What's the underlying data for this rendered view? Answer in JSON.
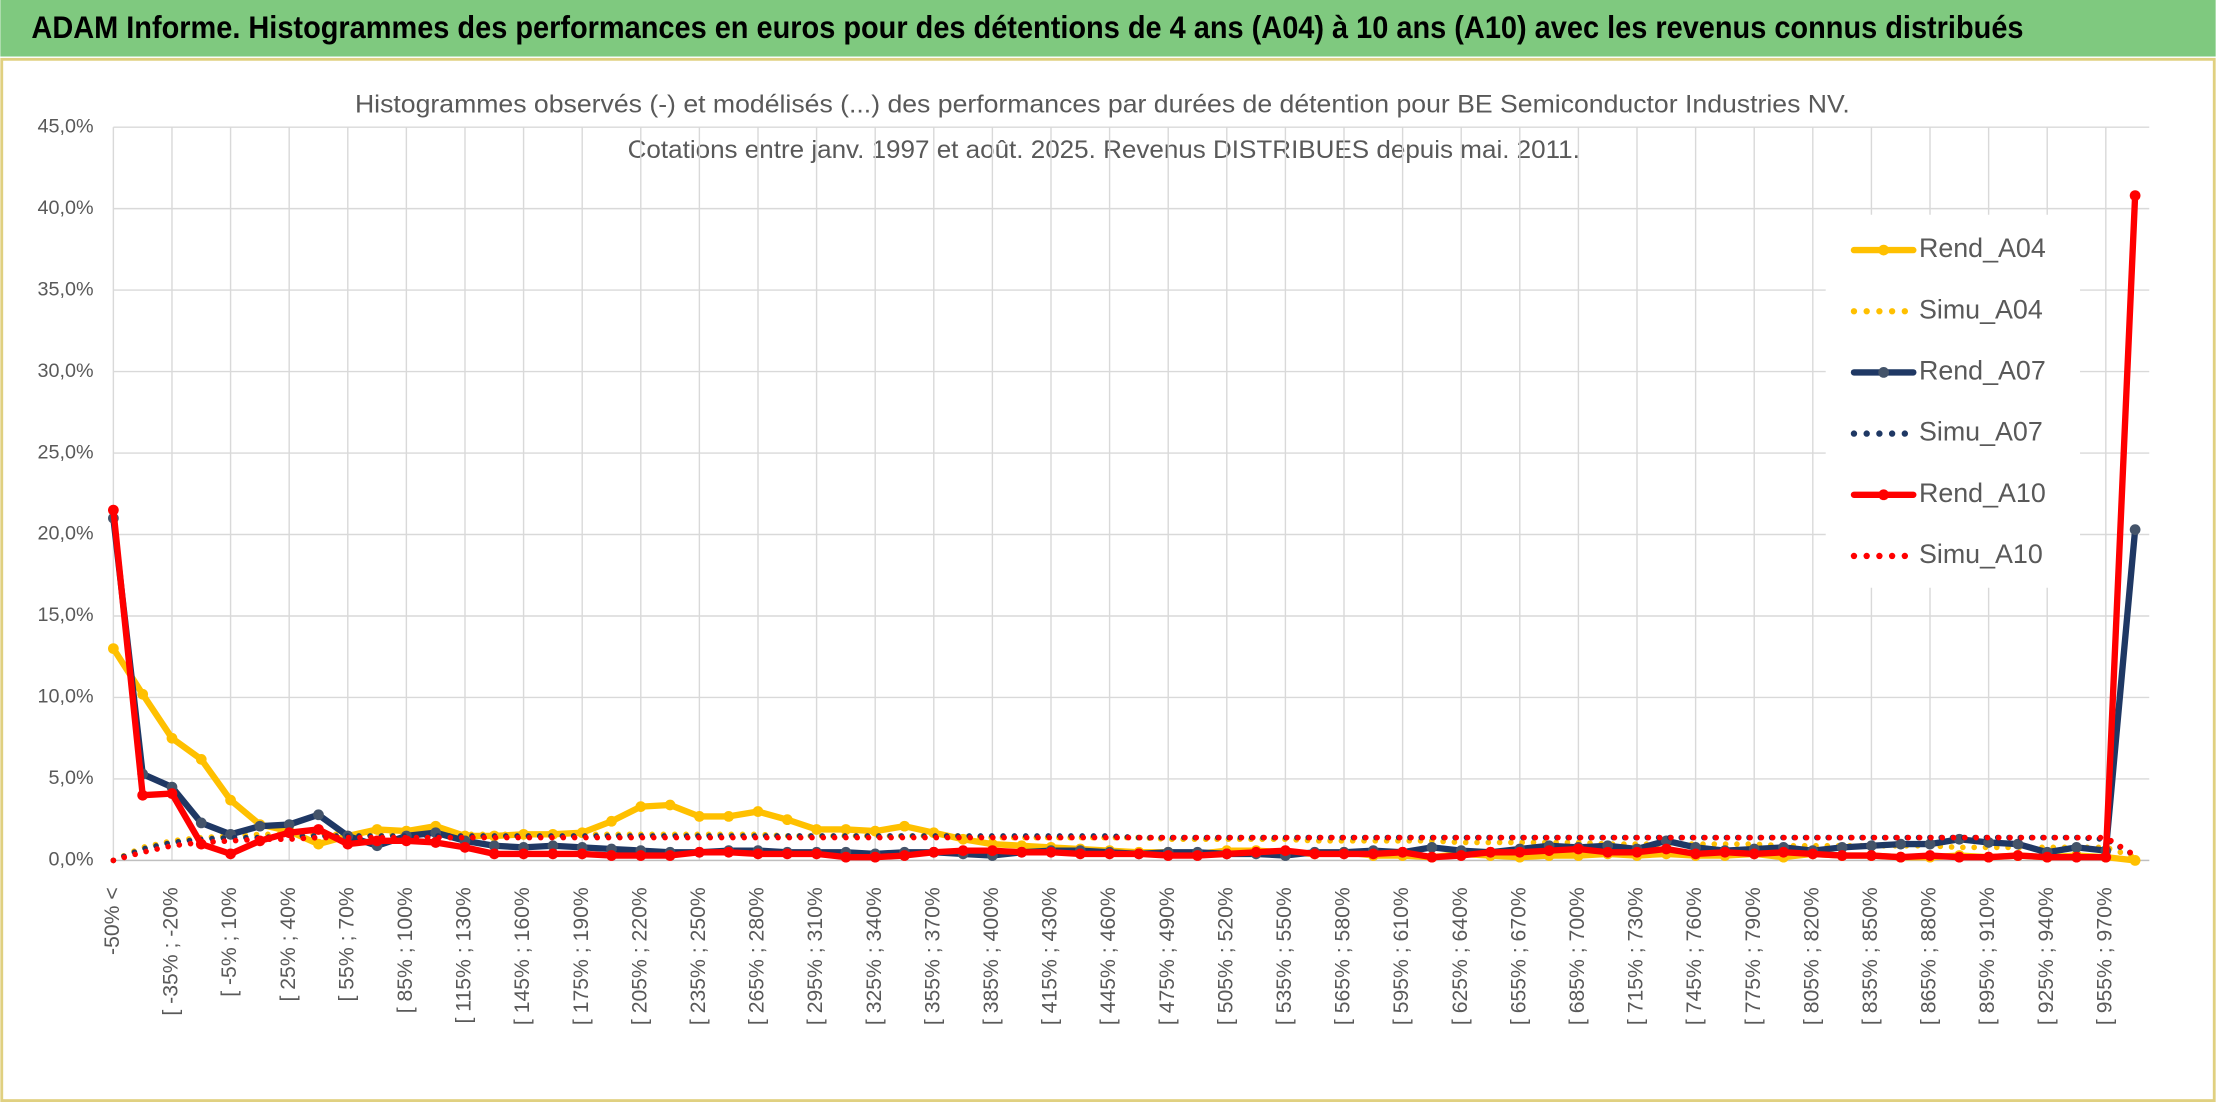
{
  "header": {
    "title": "ADAM Informe. Histogrammes des performances en euros pour des détentions de 4 ans (A04) à 10 ans (A10) avec les revenus connus distribués"
  },
  "chart_data": {
    "type": "line",
    "title": "Histogrammes observés (-) et modélisés (...) des performances par durées de détention pour BE Semiconductor Industries NV.",
    "subtitle": "Cotations entre janv. 1997 et août. 2025. Revenus DISTRIBUES depuis mai. 2011.",
    "categories": [
      "-50% <",
      null,
      "[ -35% ; -20%",
      null,
      "[ -5% ; 10%",
      null,
      "[ 25% ; 40%",
      null,
      "[ 55% ; 70%",
      null,
      "[ 85% ; 100%",
      null,
      "[ 115% ; 130%",
      null,
      "[ 145% ; 160%",
      null,
      "[ 175% ; 190%",
      null,
      "[ 205% ; 220%",
      null,
      "[ 235% ; 250%",
      null,
      "[ 265% ; 280%",
      null,
      "[ 295% ; 310%",
      null,
      "[ 325% ; 340%",
      null,
      "[ 355% ; 370%",
      null,
      "[ 385% ; 400%",
      null,
      "[ 415% ; 430%",
      null,
      "[ 445% ; 460%",
      null,
      "[ 475% ; 490%",
      null,
      "[ 505% ; 520%",
      null,
      "[ 535% ; 550%",
      null,
      "[ 565% ; 580%",
      null,
      "[ 595% ; 610%",
      null,
      "[ 625% ; 640%",
      null,
      "[ 655% ; 670%",
      null,
      "[ 685% ; 700%",
      null,
      "[ 715% ; 730%",
      null,
      "[ 745% ; 760%",
      null,
      "[ 775% ; 790%",
      null,
      "[ 805% ; 820%",
      null,
      "[ 835% ; 850%",
      null,
      "[ 865% ; 880%",
      null,
      "[ 895% ; 910%",
      null,
      "[ 925% ; 940%",
      null,
      "[ 955% ; 970%",
      null
    ],
    "series": [
      {
        "name": "Rend_A04",
        "color": "#ffc000",
        "line_style": "solid",
        "markers": true,
        "values": [
          13.0,
          10.2,
          7.5,
          6.2,
          3.7,
          2.2,
          1.8,
          1.0,
          1.5,
          1.9,
          1.8,
          2.1,
          1.5,
          1.5,
          1.6,
          1.6,
          1.7,
          2.4,
          3.3,
          3.4,
          2.7,
          2.7,
          3.0,
          2.5,
          1.9,
          1.9,
          1.8,
          2.1,
          1.7,
          1.3,
          1.0,
          0.9,
          0.8,
          0.7,
          0.6,
          0.5,
          0.5,
          0.4,
          0.6,
          0.6,
          0.5,
          0.4,
          0.5,
          0.3,
          0.3,
          0.2,
          0.4,
          0.3,
          0.2,
          0.3,
          0.3,
          0.4,
          0.3,
          0.4,
          0.3,
          0.3,
          0.4,
          0.2,
          0.4,
          0.3,
          0.3,
          0.2,
          0.2,
          0.3,
          0.2,
          0.3,
          0.2,
          0.3,
          0.2,
          0.0
        ]
      },
      {
        "name": "Simu_A04",
        "color": "#ffc000",
        "line_style": "dotted",
        "markers": false,
        "values": [
          0.0,
          0.8,
          1.2,
          1.4,
          1.5,
          1.6,
          1.6,
          1.6,
          1.6,
          1.6,
          1.6,
          1.6,
          1.6,
          1.6,
          1.6,
          1.6,
          1.6,
          1.6,
          1.6,
          1.6,
          1.6,
          1.6,
          1.6,
          1.5,
          1.5,
          1.5,
          1.5,
          1.5,
          1.5,
          1.5,
          1.4,
          1.4,
          1.4,
          1.4,
          1.4,
          1.4,
          1.3,
          1.3,
          1.3,
          1.3,
          1.3,
          1.2,
          1.2,
          1.2,
          1.2,
          1.2,
          1.1,
          1.1,
          1.1,
          1.1,
          1.1,
          1.0,
          1.0,
          1.0,
          1.0,
          1.0,
          1.0,
          0.9,
          0.9,
          0.9,
          0.9,
          0.9,
          0.9,
          0.8,
          0.8,
          0.8,
          0.8,
          0.8,
          0.8,
          0.2
        ]
      },
      {
        "name": "Rend_A07",
        "color": "#1f3864",
        "line_style": "solid",
        "markers": true,
        "values": [
          21.0,
          5.3,
          4.5,
          2.3,
          1.6,
          2.1,
          2.2,
          2.8,
          1.5,
          0.9,
          1.5,
          1.7,
          1.2,
          0.9,
          0.8,
          0.9,
          0.8,
          0.7,
          0.6,
          0.5,
          0.5,
          0.6,
          0.6,
          0.5,
          0.5,
          0.5,
          0.4,
          0.5,
          0.5,
          0.4,
          0.3,
          0.5,
          0.6,
          0.6,
          0.5,
          0.4,
          0.5,
          0.5,
          0.4,
          0.4,
          0.3,
          0.5,
          0.5,
          0.6,
          0.5,
          0.8,
          0.6,
          0.5,
          0.7,
          0.9,
          0.8,
          0.9,
          0.7,
          1.2,
          0.8,
          0.6,
          0.7,
          0.8,
          0.6,
          0.8,
          0.9,
          1.0,
          1.0,
          1.3,
          1.1,
          1.0,
          0.5,
          0.8,
          0.6,
          20.3
        ]
      },
      {
        "name": "Simu_A07",
        "color": "#1f3864",
        "line_style": "dotted",
        "markers": false,
        "values": [
          0.0,
          0.7,
          1.1,
          1.3,
          1.4,
          1.4,
          1.5,
          1.5,
          1.5,
          1.5,
          1.5,
          1.5,
          1.5,
          1.5,
          1.5,
          1.5,
          1.5,
          1.5,
          1.5,
          1.5,
          1.5,
          1.5,
          1.5,
          1.5,
          1.5,
          1.5,
          1.5,
          1.5,
          1.5,
          1.5,
          1.5,
          1.5,
          1.5,
          1.5,
          1.5,
          1.4,
          1.4,
          1.4,
          1.4,
          1.4,
          1.4,
          1.4,
          1.4,
          1.4,
          1.4,
          1.4,
          1.4,
          1.4,
          1.4,
          1.4,
          1.4,
          1.4,
          1.4,
          1.4,
          1.4,
          1.4,
          1.4,
          1.4,
          1.4,
          1.4,
          1.4,
          1.4,
          1.4,
          1.4,
          1.4,
          1.4,
          1.4,
          1.4,
          1.3,
          0.3
        ]
      },
      {
        "name": "Rend_A10",
        "color": "#ff0000",
        "line_style": "solid",
        "markers": true,
        "values": [
          21.5,
          4.0,
          4.1,
          1.0,
          0.4,
          1.2,
          1.7,
          1.9,
          1.0,
          1.2,
          1.2,
          1.1,
          0.8,
          0.4,
          0.4,
          0.4,
          0.4,
          0.3,
          0.3,
          0.3,
          0.5,
          0.5,
          0.4,
          0.4,
          0.4,
          0.2,
          0.2,
          0.3,
          0.5,
          0.6,
          0.6,
          0.5,
          0.5,
          0.4,
          0.4,
          0.4,
          0.3,
          0.3,
          0.4,
          0.5,
          0.6,
          0.4,
          0.4,
          0.4,
          0.5,
          0.2,
          0.3,
          0.5,
          0.5,
          0.6,
          0.7,
          0.5,
          0.5,
          0.7,
          0.4,
          0.5,
          0.4,
          0.5,
          0.4,
          0.3,
          0.3,
          0.2,
          0.3,
          0.2,
          0.2,
          0.3,
          0.2,
          0.2,
          0.2,
          40.8
        ]
      },
      {
        "name": "Simu_A10",
        "color": "#ff0000",
        "line_style": "dotted",
        "markers": false,
        "values": [
          0.0,
          0.5,
          0.9,
          1.1,
          1.2,
          1.3,
          1.3,
          1.4,
          1.4,
          1.4,
          1.4,
          1.4,
          1.4,
          1.4,
          1.4,
          1.4,
          1.4,
          1.4,
          1.4,
          1.4,
          1.4,
          1.4,
          1.4,
          1.4,
          1.4,
          1.4,
          1.4,
          1.4,
          1.4,
          1.4,
          1.4,
          1.4,
          1.4,
          1.4,
          1.4,
          1.4,
          1.4,
          1.4,
          1.4,
          1.4,
          1.4,
          1.4,
          1.4,
          1.4,
          1.4,
          1.4,
          1.4,
          1.4,
          1.4,
          1.4,
          1.4,
          1.4,
          1.4,
          1.4,
          1.4,
          1.4,
          1.4,
          1.4,
          1.4,
          1.4,
          1.4,
          1.4,
          1.4,
          1.4,
          1.4,
          1.4,
          1.4,
          1.4,
          1.4,
          0.3
        ]
      }
    ],
    "ylim": [
      0,
      45
    ],
    "yticks": [
      {
        "value": 0,
        "label": "0,0%"
      },
      {
        "value": 5,
        "label": "5,0%"
      },
      {
        "value": 10,
        "label": "10,0%"
      },
      {
        "value": 15,
        "label": "15,0%"
      },
      {
        "value": 20,
        "label": "20,0%"
      },
      {
        "value": 25,
        "label": "25,0%"
      },
      {
        "value": 30,
        "label": "30,0%"
      },
      {
        "value": 35,
        "label": "35,0%"
      },
      {
        "value": 40,
        "label": "40,0%"
      },
      {
        "value": 45,
        "label": "45,0%"
      }
    ],
    "grid": true,
    "legend": "right"
  }
}
